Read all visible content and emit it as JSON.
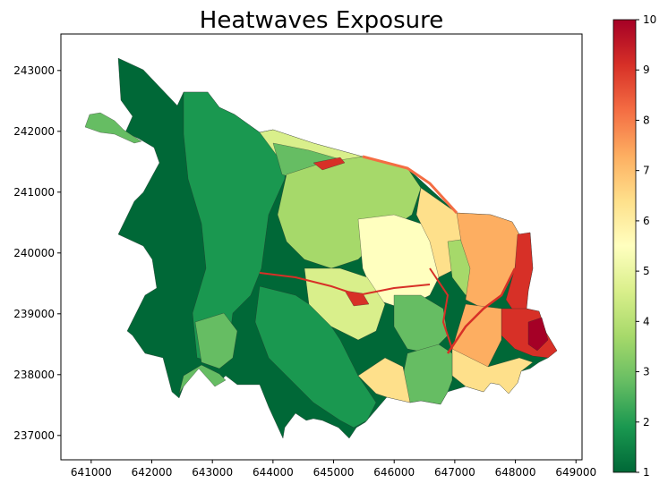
{
  "chart_data": {
    "type": "choropleth",
    "title": "Heatwaves Exposure",
    "xlabel": "",
    "ylabel": "",
    "xlim": [
      640500,
      649100
    ],
    "ylim": [
      236600,
      243600
    ],
    "xticks": [
      641000,
      642000,
      643000,
      644000,
      645000,
      646000,
      647000,
      648000,
      649000
    ],
    "yticks": [
      237000,
      238000,
      239000,
      240000,
      241000,
      242000,
      243000
    ],
    "colorbar": {
      "min": 1,
      "max": 10,
      "ticks": [
        1,
        2,
        3,
        4,
        5,
        6,
        7,
        8,
        9,
        10
      ],
      "colormap": "RdYlGn_r",
      "stops": [
        "#006837",
        "#1a9850",
        "#66bd63",
        "#a6d96a",
        "#d9ef8b",
        "#ffffbf",
        "#fee08b",
        "#fdae61",
        "#f46d43",
        "#d73027",
        "#a50026"
      ]
    },
    "grid": false
  }
}
